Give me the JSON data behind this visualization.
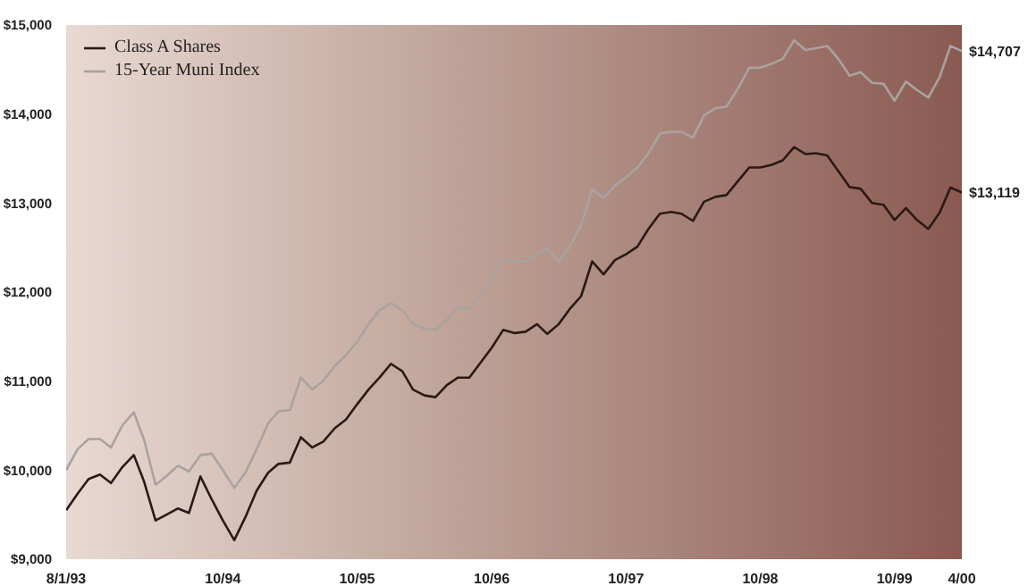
{
  "chart_data": {
    "type": "line",
    "x": [
      "1993-08",
      "1993-09",
      "1993-10",
      "1993-11",
      "1993-12",
      "1994-01",
      "1994-02",
      "1994-03",
      "1994-04",
      "1994-05",
      "1994-06",
      "1994-07",
      "1994-08",
      "1994-09",
      "1994-10",
      "1994-11",
      "1994-12",
      "1995-01",
      "1995-02",
      "1995-03",
      "1995-04",
      "1995-05",
      "1995-06",
      "1995-07",
      "1995-08",
      "1995-09",
      "1995-10",
      "1995-11",
      "1995-12",
      "1996-01",
      "1996-02",
      "1996-03",
      "1996-04",
      "1996-05",
      "1996-06",
      "1996-07",
      "1996-08",
      "1996-09",
      "1996-10",
      "1996-11",
      "1996-12",
      "1997-01",
      "1997-02",
      "1997-03",
      "1997-04",
      "1997-05",
      "1997-06",
      "1997-07",
      "1997-08",
      "1997-09",
      "1997-10",
      "1997-11",
      "1997-12",
      "1998-01",
      "1998-02",
      "1998-03",
      "1998-04",
      "1998-05",
      "1998-06",
      "1998-07",
      "1998-08",
      "1998-09",
      "1998-10",
      "1998-11",
      "1998-12",
      "1999-01",
      "1999-02",
      "1999-03",
      "1999-04",
      "1999-05",
      "1999-06",
      "1999-07",
      "1999-08",
      "1999-09",
      "1999-10",
      "1999-11",
      "1999-12",
      "2000-01",
      "2000-02",
      "2000-03",
      "2000-04"
    ],
    "series": [
      {
        "name": "Class A Shares",
        "color": "#2a1a16",
        "values": [
          9550,
          9735,
          9900,
          9950,
          9855,
          10035,
          10170,
          9870,
          9435,
          9500,
          9570,
          9520,
          9930,
          9670,
          9435,
          9215,
          9470,
          9770,
          9970,
          10070,
          10085,
          10370,
          10255,
          10320,
          10470,
          10570,
          10740,
          10905,
          11040,
          11195,
          11110,
          10905,
          10840,
          10820,
          10955,
          11040,
          11040,
          11210,
          11375,
          11575,
          11540,
          11555,
          11640,
          11530,
          11640,
          11810,
          11955,
          12345,
          12200,
          12360,
          12425,
          12510,
          12710,
          12880,
          12900,
          12880,
          12800,
          13015,
          13070,
          13090,
          13245,
          13400,
          13400,
          13430,
          13480,
          13630,
          13550,
          13560,
          13535,
          13360,
          13180,
          13160,
          13000,
          12980,
          12810,
          12945,
          12810,
          12710,
          12895,
          13175,
          13119
        ]
      },
      {
        "name": "15-Year Muni Index",
        "color": "#aaa2a0",
        "values": [
          10000,
          10235,
          10350,
          10350,
          10255,
          10505,
          10650,
          10340,
          9835,
          9935,
          10050,
          9985,
          10170,
          10185,
          10000,
          9800,
          9970,
          10235,
          10525,
          10660,
          10675,
          11040,
          10905,
          11005,
          11170,
          11295,
          11440,
          11640,
          11795,
          11875,
          11795,
          11640,
          11590,
          11575,
          11690,
          11825,
          11810,
          11975,
          12145,
          12380,
          12345,
          12345,
          12425,
          12490,
          12345,
          12510,
          12755,
          13155,
          13060,
          13195,
          13290,
          13400,
          13560,
          13780,
          13800,
          13800,
          13735,
          13985,
          14065,
          14085,
          14285,
          14520,
          14520,
          14565,
          14620,
          14830,
          14720,
          14740,
          14765,
          14620,
          14430,
          14470,
          14350,
          14340,
          14150,
          14365,
          14270,
          14185,
          14420,
          14765,
          14707
        ]
      }
    ],
    "xlim": [
      "1993-08",
      "2000-04"
    ],
    "xticks": [
      {
        "value": "1993-08",
        "label": "8/1/93"
      },
      {
        "value": "1994-10",
        "label": "10/94"
      },
      {
        "value": "1995-10",
        "label": "10/95"
      },
      {
        "value": "1996-10",
        "label": "10/96"
      },
      {
        "value": "1997-10",
        "label": "10/97"
      },
      {
        "value": "1998-10",
        "label": "10/98"
      },
      {
        "value": "1999-10",
        "label": "10/99"
      },
      {
        "value": "2000-04",
        "label": "4/00"
      }
    ],
    "ylim": [
      9000,
      15000
    ],
    "yticks": [
      {
        "value": 9000,
        "label": "$9,000"
      },
      {
        "value": 10000,
        "label": "$10,000"
      },
      {
        "value": 11000,
        "label": "$11,000"
      },
      {
        "value": 12000,
        "label": "$12,000"
      },
      {
        "value": 13000,
        "label": "$13,000"
      },
      {
        "value": 14000,
        "label": "$14,000"
      },
      {
        "value": 15000,
        "label": "$15,000"
      }
    ],
    "annotations": [
      {
        "text": "$14,707",
        "x": "2000-04",
        "y": 14707
      },
      {
        "text": "$13,119",
        "x": "2000-04",
        "y": 13119
      }
    ],
    "legend": "top left",
    "grid": false,
    "marker": "none",
    "line_style": "solid"
  }
}
